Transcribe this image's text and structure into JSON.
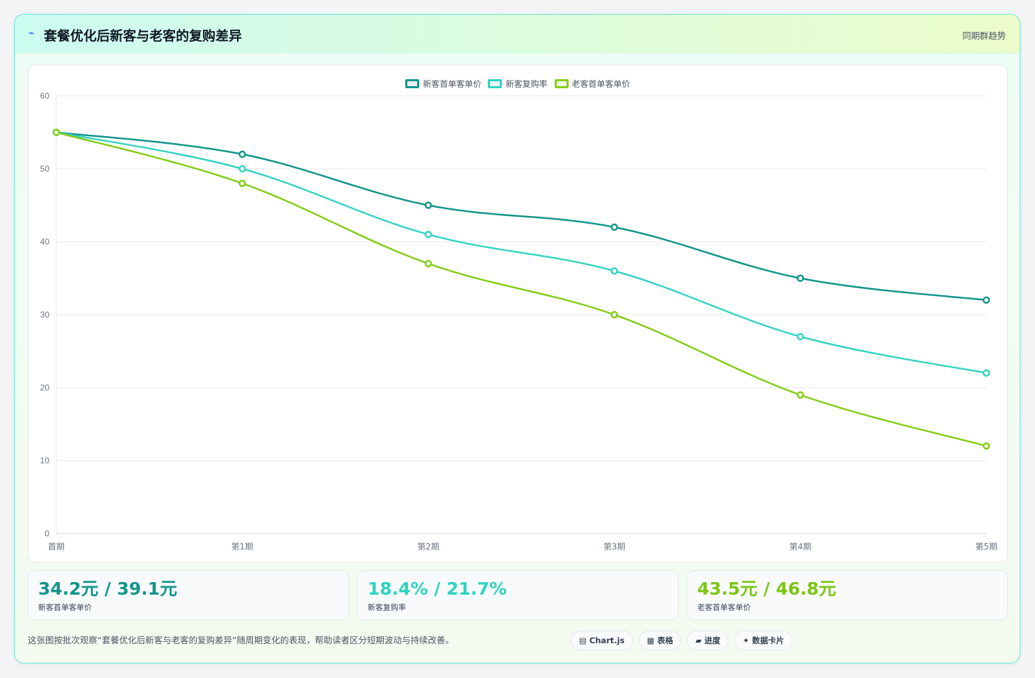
{
  "header": {
    "icon": "trend-icon",
    "title": "套餐优化后新客与老客的复购差异",
    "tag": "同期群趋势"
  },
  "chart_data": {
    "type": "line",
    "categories": [
      "首期",
      "第1期",
      "第2期",
      "第3期",
      "第4期",
      "第5期"
    ],
    "series": [
      {
        "name": "新客首单客单价",
        "color": "#13958a",
        "values": [
          55,
          52,
          45,
          42,
          35,
          32
        ]
      },
      {
        "name": "新客复购率",
        "color": "#34d3c2",
        "values": [
          55,
          50,
          41,
          36,
          27,
          22
        ]
      },
      {
        "name": "老客首单客单价",
        "color": "#84cc16",
        "values": [
          55,
          48,
          37,
          30,
          19,
          12
        ]
      }
    ],
    "ylim": [
      0,
      60
    ],
    "yticks": [
      0,
      10,
      20,
      30,
      40,
      50,
      60
    ],
    "grid": true,
    "legend": "top-center"
  },
  "stats": [
    {
      "value": "34.2元 / 39.1元",
      "label": "新客首单客单价",
      "color": "#13958a"
    },
    {
      "value": "18.4% / 21.7%",
      "label": "新客复购率",
      "color": "#2dd4bf"
    },
    {
      "value": "43.5元 / 46.8元",
      "label": "老客首单客单价",
      "color": "#7cc516"
    }
  ],
  "footer": {
    "note": "这张图按批次观察“套餐优化后新客与老客的复购差异”随周期变化的表现，帮助读者区分短期波动与持续改善。",
    "pills": [
      {
        "icon": "▤",
        "label": "Chart.js"
      },
      {
        "icon": "▦",
        "label": "表格"
      },
      {
        "icon": "▰",
        "label": "进度"
      },
      {
        "icon": "✦",
        "label": "数据卡片"
      }
    ]
  }
}
